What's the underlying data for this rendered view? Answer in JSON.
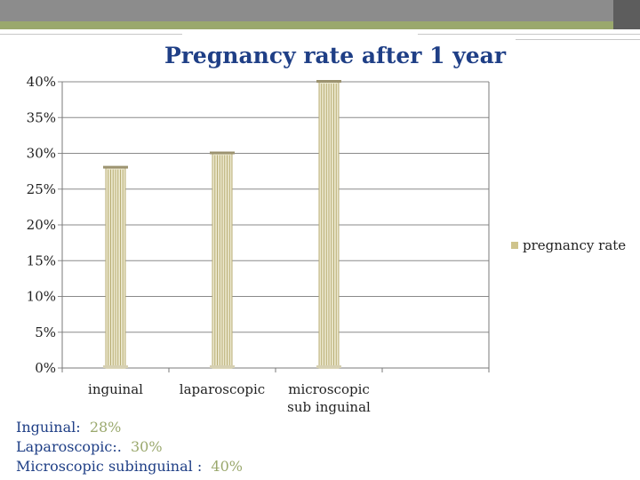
{
  "slide": {
    "title": "Pregnancy rate after 1 year"
  },
  "colors": {
    "title": "#1f3f86",
    "accent": "#9aa86d",
    "column_fill": "#ece8cf",
    "column_line": "#b8ad73"
  },
  "chart_data": {
    "type": "bar",
    "title": "Pregnancy rate after 1 year",
    "categories": [
      [
        "inguinal"
      ],
      [
        "laparoscopic"
      ],
      [
        "microscopic",
        "sub inguinal"
      ]
    ],
    "series": [
      {
        "name": "pregnancy rate",
        "values": [
          28,
          30,
          40
        ]
      }
    ],
    "ylim": [
      0,
      40
    ],
    "yticks": [
      0,
      5,
      10,
      15,
      20,
      25,
      30,
      35,
      40
    ],
    "ytick_labels": [
      "0%",
      "5%",
      "10%",
      "15%",
      "20%",
      "25%",
      "30%",
      "35%",
      "40%"
    ],
    "grid": true,
    "legend_position": "right"
  },
  "notes": {
    "items": [
      {
        "label": "Inguinal:",
        "value": "28%"
      },
      {
        "label": "Laparoscopic:.",
        "value": "30%"
      },
      {
        "label": "Microscopic subinguinal :",
        "value": "40%"
      }
    ]
  }
}
